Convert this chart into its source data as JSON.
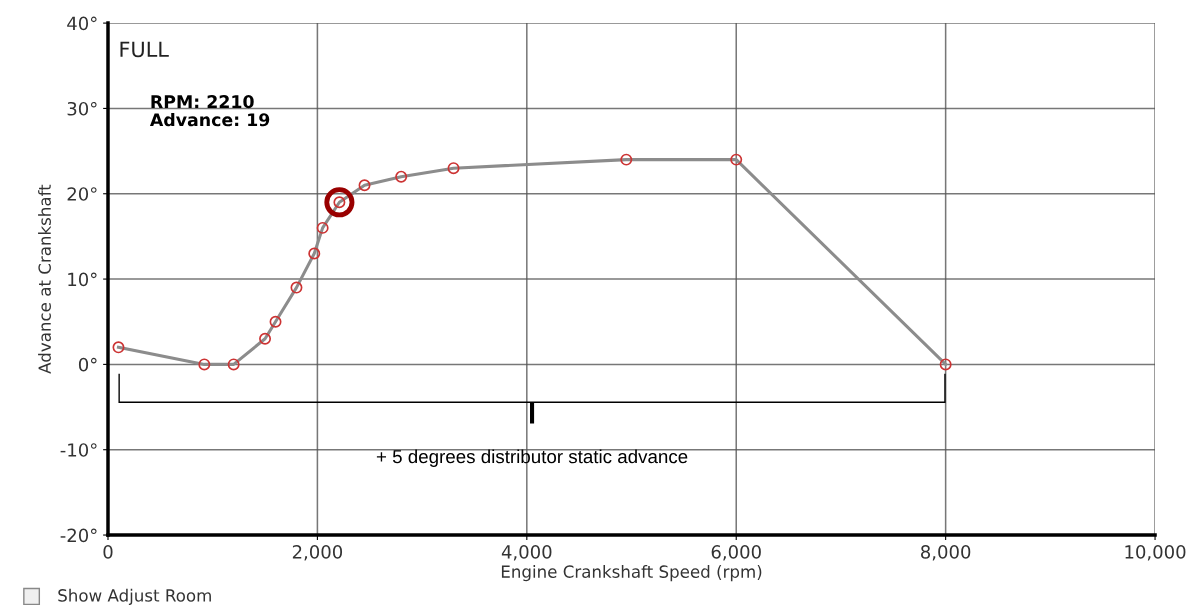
{
  "chart_data": {
    "type": "line",
    "title": "FULL",
    "xlabel": "Engine Crankshaft Speed (rpm)",
    "ylabel": "Advance at Crankshaft",
    "series": [
      {
        "type": "line",
        "color": "#8c8c8c",
        "marker": "none",
        "x": [
          100,
          920,
          1200,
          1500,
          1600,
          1800,
          1970,
          2050,
          2210,
          2450,
          2800,
          3300,
          4950,
          6000,
          8000
        ],
        "values": [
          2,
          0,
          0,
          3,
          5,
          9,
          13,
          16,
          19,
          21,
          22,
          23,
          24,
          24,
          0
        ]
      },
      {
        "type": "scatter",
        "color": "#cc3333",
        "marker": "circle",
        "x": [
          100,
          920,
          1200,
          1500,
          1600,
          1800,
          1970,
          2050,
          2210,
          2450,
          2800,
          3300,
          4950,
          6000,
          8000
        ],
        "values": [
          2,
          0,
          0,
          3,
          5,
          9,
          13,
          16,
          19,
          21,
          22,
          23,
          24,
          24,
          0
        ]
      },
      {
        "type": "scatter",
        "color": "#990000",
        "marker": "circle",
        "x": [
          2210
        ],
        "values": [
          19
        ]
      }
    ],
    "xlim": [
      0,
      10000
    ],
    "ylim": [
      -20,
      40
    ],
    "xticks": [
      {
        "value": 0,
        "label": "0"
      },
      {
        "value": 2000,
        "label": "2,000"
      },
      {
        "value": 4000,
        "label": "4,000"
      },
      {
        "value": 6000,
        "label": "6,000"
      },
      {
        "value": 8000,
        "label": "8,000"
      },
      {
        "value": 10000,
        "label": "10,000"
      }
    ],
    "yticks": [
      {
        "value": -20,
        "label": "-20°"
      },
      {
        "value": -10,
        "label": "-10°"
      },
      {
        "value": 0,
        "label": "0°"
      },
      {
        "value": 10,
        "label": "10°"
      },
      {
        "value": 20,
        "label": "20°"
      },
      {
        "value": 30,
        "label": "30°"
      },
      {
        "value": 40,
        "label": "40°"
      }
    ],
    "grid": true,
    "legend": false,
    "line_style": "solid",
    "annotations": [
      "RPM: 2210\nAdvance: 19",
      "Show Adjust Room",
      "+ 5 degrees distributor static advance"
    ]
  }
}
